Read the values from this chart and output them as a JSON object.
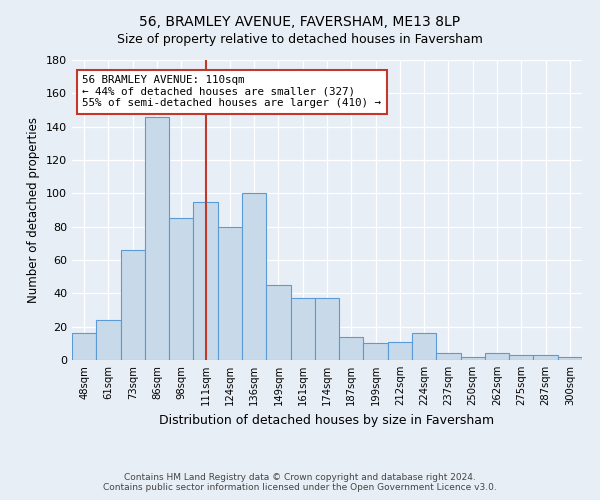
{
  "title": "56, BRAMLEY AVENUE, FAVERSHAM, ME13 8LP",
  "subtitle": "Size of property relative to detached houses in Faversham",
  "xlabel": "Distribution of detached houses by size in Faversham",
  "ylabel": "Number of detached properties",
  "categories": [
    "48sqm",
    "61sqm",
    "73sqm",
    "86sqm",
    "98sqm",
    "111sqm",
    "124sqm",
    "136sqm",
    "149sqm",
    "161sqm",
    "174sqm",
    "187sqm",
    "199sqm",
    "212sqm",
    "224sqm",
    "237sqm",
    "250sqm",
    "262sqm",
    "275sqm",
    "287sqm",
    "300sqm"
  ],
  "values": [
    16,
    24,
    66,
    146,
    85,
    95,
    80,
    100,
    45,
    37,
    37,
    14,
    10,
    11,
    16,
    4,
    2,
    4,
    3,
    3,
    2
  ],
  "bar_color": "#c8daea",
  "bar_edge_color": "#5b9bd5",
  "vline_x_index": 5,
  "vline_color": "#c0392b",
  "annotation_text": "56 BRAMLEY AVENUE: 110sqm\n← 44% of detached houses are smaller (327)\n55% of semi-detached houses are larger (410) →",
  "annotation_box_color": "white",
  "annotation_box_edge_color": "#c0392b",
  "ylim": [
    0,
    180
  ],
  "yticks": [
    0,
    20,
    40,
    60,
    80,
    100,
    120,
    140,
    160,
    180
  ],
  "footer": "Contains HM Land Registry data © Crown copyright and database right 2024.\nContains public sector information licensed under the Open Government Licence v3.0.",
  "background_color": "#e8eef5",
  "plot_background_color": "#e8eef5",
  "fig_width": 6.0,
  "fig_height": 5.0
}
